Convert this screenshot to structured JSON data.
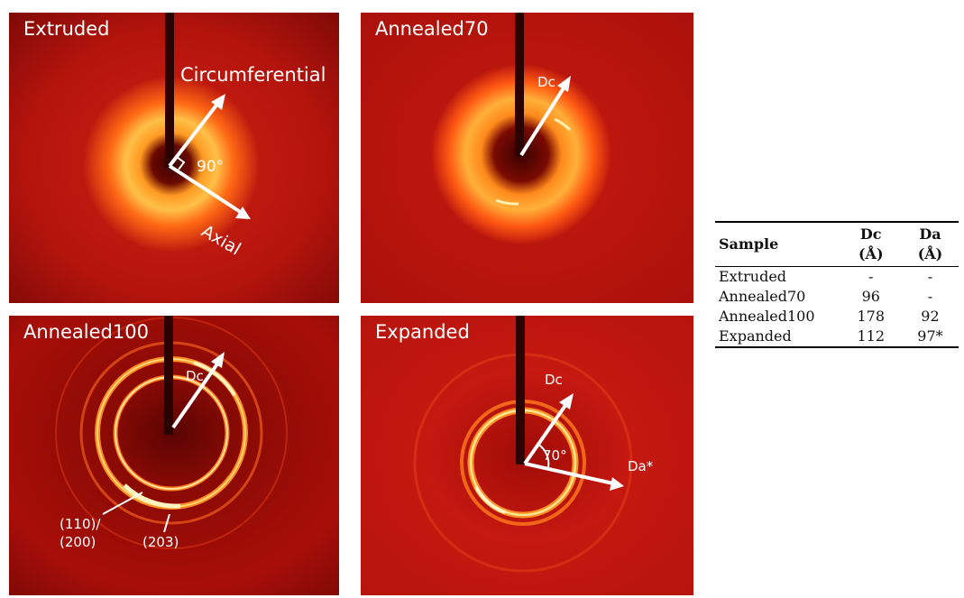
{
  "panels": [
    {
      "title": "Extruded",
      "labels": {
        "circumferential": "Circumferential",
        "angle": "90°",
        "axial": "Axial"
      }
    },
    {
      "title": "Annealed70",
      "labels": {
        "dc": "Dc"
      }
    },
    {
      "title": "Annealed100",
      "labels": {
        "dc": "Dc",
        "peak_a1": "(110)/",
        "peak_a2": "(200)",
        "peak_b": "(203)"
      }
    },
    {
      "title": "Expanded",
      "labels": {
        "dc": "Dc",
        "angle": "70°",
        "da": "Da*"
      }
    }
  ],
  "table": {
    "headers": {
      "sample": "Sample",
      "dc_top": "Dc",
      "dc_unit": "(Å)",
      "da_top": "Da",
      "da_unit": "(Å)"
    },
    "rows": [
      {
        "sample": "Extruded",
        "dc": "-",
        "da": "-"
      },
      {
        "sample": "Annealed70",
        "dc": "96",
        "da": "-"
      },
      {
        "sample": "Annealed100",
        "dc": "178",
        "da": "92"
      },
      {
        "sample": "Expanded",
        "dc": "112",
        "da": "97*"
      }
    ]
  },
  "colors": {
    "background_red": "#b8120c",
    "ring_orange": "#ff8a1a",
    "ring_yellow": "#ffe070",
    "arrow": "#ffffff"
  }
}
